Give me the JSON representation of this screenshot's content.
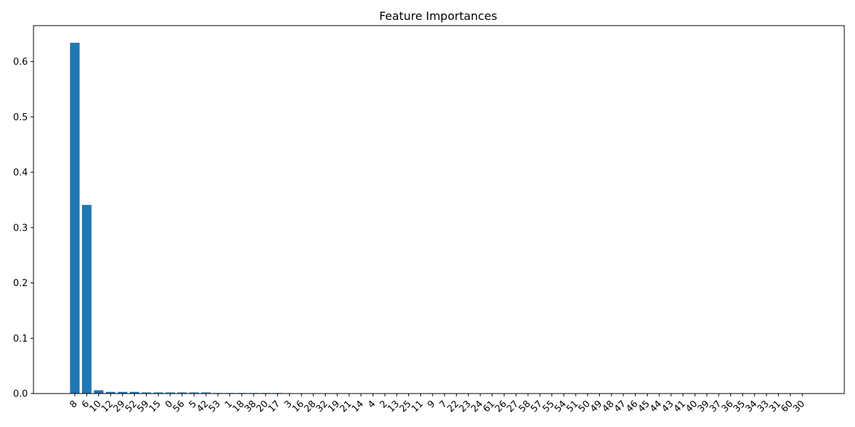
{
  "chart_data": {
    "type": "bar",
    "title": "Feature Importances",
    "xlabel": "",
    "ylabel": "",
    "color": "#1f77b4",
    "grid": false,
    "ylim": [
      0,
      0.665
    ],
    "yticks": [
      "0.0",
      "0.1",
      "0.2",
      "0.3",
      "0.4",
      "0.5",
      "0.6"
    ],
    "categories": [
      "8",
      "6",
      "10",
      "12",
      "29",
      "52",
      "59",
      "15",
      "0",
      "56",
      "5",
      "42",
      "53",
      "1",
      "18",
      "38",
      "20",
      "17",
      "3",
      "16",
      "28",
      "32",
      "19",
      "21",
      "14",
      "4",
      "2",
      "13",
      "25",
      "11",
      "9",
      "7",
      "22",
      "23",
      "24",
      "61",
      "26",
      "27",
      "58",
      "57",
      "55",
      "54",
      "51",
      "50",
      "49",
      "48",
      "47",
      "46",
      "45",
      "44",
      "43",
      "41",
      "40",
      "39",
      "37",
      "36",
      "35",
      "34",
      "33",
      "31",
      "60",
      "30"
    ],
    "values": [
      0.634,
      0.341,
      0.006,
      0.003,
      0.003,
      0.003,
      0.002,
      0.002,
      0.002,
      0.002,
      0.002,
      0.002,
      0.001,
      0.001,
      0.001,
      0.001,
      0.001,
      0.001,
      0,
      0,
      0,
      0,
      0,
      0,
      0,
      0,
      0,
      0,
      0,
      0,
      0,
      0,
      0,
      0,
      0,
      0,
      0,
      0,
      0,
      0,
      0,
      0,
      0,
      0,
      0,
      0,
      0,
      0,
      0,
      0,
      0,
      0,
      0,
      0,
      0,
      0,
      0,
      0,
      0,
      0,
      0,
      0
    ]
  }
}
